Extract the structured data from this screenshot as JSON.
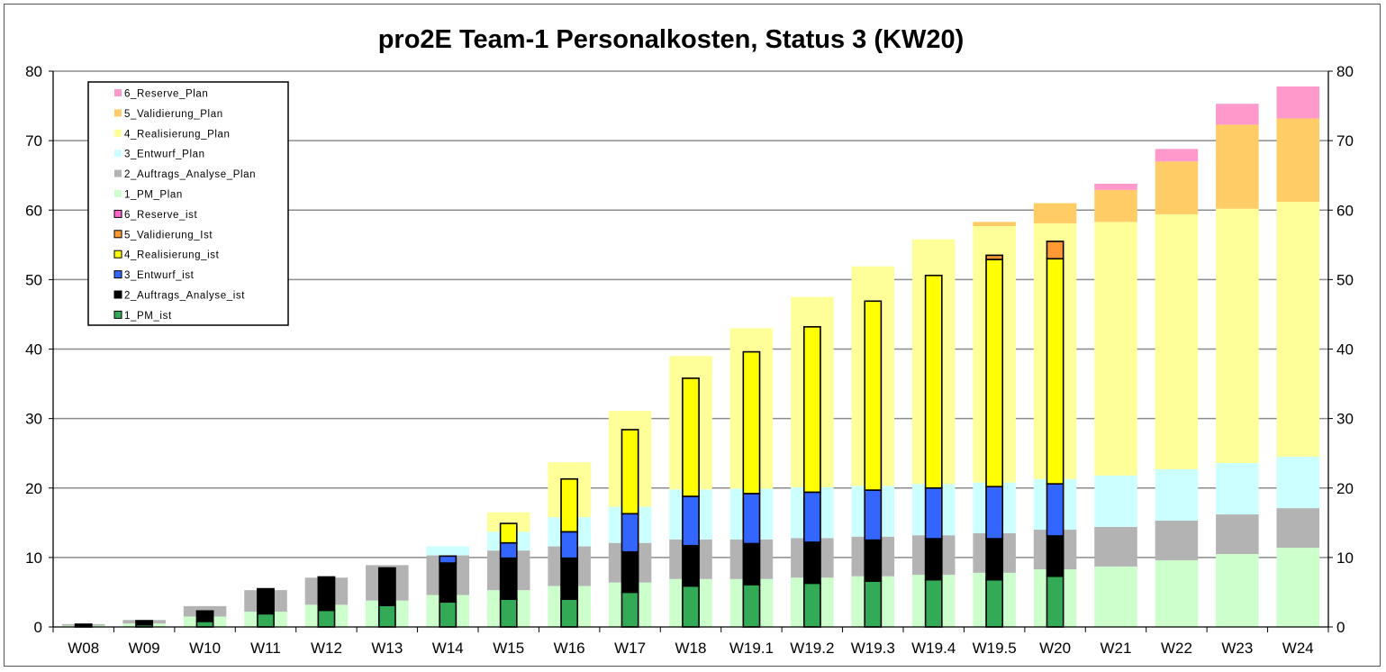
{
  "chart_data": {
    "type": "bar",
    "stacked": true,
    "title": "pro2E Team-1 Personalkosten, Status 3 (KW20)",
    "categories": [
      "W08",
      "W09",
      "W10",
      "W11",
      "W12",
      "W13",
      "W14",
      "W15",
      "W16",
      "W17",
      "W18",
      "W19.1",
      "W19.2",
      "W19.3",
      "W19.4",
      "W19.5",
      "W20",
      "W21",
      "W22",
      "W23",
      "W24"
    ],
    "ylim": [
      0,
      80
    ],
    "yticks": [
      "0",
      "10",
      "20",
      "30",
      "40",
      "50",
      "60",
      "70",
      "80"
    ],
    "grid": true,
    "legend_position": "top-left",
    "legend_order": [
      "6_Reserve_Plan",
      "5_Validierung_Plan",
      "4_Realisierung_Plan",
      "3_Entwurf_Plan",
      "2_Auftrags_Analyse_Plan",
      "1_PM_Plan",
      "6_Reserve_ist",
      "5_Validierung_Ist",
      "4_Realisierung_ist",
      "3_Entwurf_ist",
      "2_Auftrags_Analyse_ist",
      "1_PM_ist"
    ],
    "plan_series": [
      {
        "name": "1_PM_Plan",
        "color": "#ccffcc",
        "values": [
          0.2,
          0.5,
          1.5,
          2.2,
          3.2,
          3.8,
          4.6,
          5.3,
          5.9,
          6.4,
          6.9,
          6.9,
          7.1,
          7.3,
          7.5,
          7.8,
          8.3,
          8.7,
          9.6,
          10.5,
          11.4
        ]
      },
      {
        "name": "2_Auftrags_Analyse_Plan",
        "color": "#b3b3b3",
        "values": [
          0.2,
          0.5,
          1.5,
          3.1,
          3.9,
          5.1,
          5.7,
          5.7,
          5.7,
          5.7,
          5.7,
          5.7,
          5.7,
          5.7,
          5.7,
          5.7,
          5.7,
          5.7,
          5.7,
          5.7,
          5.7
        ]
      },
      {
        "name": "3_Entwurf_Plan",
        "color": "#ccffff",
        "values": [
          0,
          0,
          0,
          0,
          0,
          0,
          1.3,
          2.7,
          4.2,
          5.2,
          7.2,
          7.3,
          7.3,
          7.3,
          7.4,
          7.3,
          7.3,
          7.4,
          7.4,
          7.4,
          7.4
        ]
      },
      {
        "name": "4_Realisierung_Plan",
        "color": "#ffff99",
        "values": [
          0,
          0,
          0,
          0,
          0,
          0,
          0,
          2.8,
          7.9,
          13.8,
          19.2,
          23.1,
          27.4,
          31.6,
          35.2,
          36.9,
          36.8,
          36.5,
          36.7,
          36.6,
          36.7
        ]
      },
      {
        "name": "5_Validierung_Plan",
        "color": "#ffcc66",
        "values": [
          0,
          0,
          0,
          0,
          0,
          0,
          0,
          0,
          0,
          0,
          0,
          0,
          0,
          0,
          0,
          0.6,
          2.9,
          4.6,
          7.6,
          12.1,
          12.0
        ]
      },
      {
        "name": "6_Reserve_Plan",
        "color": "#ff99cc",
        "values": [
          0,
          0,
          0,
          0,
          0,
          0,
          0,
          0,
          0,
          0,
          0,
          0,
          0,
          0,
          0,
          0,
          0,
          0.9,
          1.8,
          3.0,
          4.6
        ]
      }
    ],
    "actual_series": [
      {
        "name": "1_PM_ist",
        "color": "#33aa55",
        "values": [
          0.1,
          0.3,
          0.8,
          1.9,
          2.4,
          3.1,
          3.6,
          4.0,
          4.0,
          5.0,
          5.9,
          6.1,
          6.3,
          6.6,
          6.8,
          6.8,
          7.3,
          0,
          0,
          0,
          0
        ]
      },
      {
        "name": "2_Auftrags_Analyse_ist",
        "color": "#000000",
        "values": [
          0.3,
          0.6,
          1.5,
          3.6,
          4.8,
          5.4,
          5.6,
          5.9,
          5.9,
          5.8,
          5.8,
          5.9,
          5.9,
          5.9,
          5.9,
          5.9,
          5.8,
          0,
          0,
          0,
          0
        ]
      },
      {
        "name": "3_Entwurf_ist",
        "color": "#3366ff",
        "values": [
          0,
          0,
          0,
          0,
          0,
          0,
          1.0,
          2.2,
          3.8,
          5.5,
          7.1,
          7.2,
          7.2,
          7.2,
          7.3,
          7.5,
          7.5,
          0,
          0,
          0,
          0
        ]
      },
      {
        "name": "4_Realisierung_ist",
        "color": "#ffff00",
        "values": [
          0,
          0,
          0,
          0,
          0,
          0,
          0,
          2.8,
          7.6,
          12.1,
          17.0,
          20.4,
          23.8,
          27.2,
          30.6,
          32.7,
          32.4,
          0,
          0,
          0,
          0
        ]
      },
      {
        "name": "5_Validierung_Ist",
        "color": "#ff9933",
        "values": [
          0,
          0,
          0,
          0,
          0,
          0,
          0,
          0,
          0,
          0,
          0,
          0,
          0,
          0,
          0,
          0.6,
          2.5,
          0,
          0,
          0,
          0
        ]
      },
      {
        "name": "6_Reserve_ist",
        "color": "#ff66cc",
        "values": [
          0,
          0,
          0,
          0,
          0,
          0,
          0,
          0,
          0,
          0,
          0,
          0,
          0,
          0,
          0,
          0,
          0,
          0,
          0,
          0,
          0
        ]
      }
    ]
  }
}
